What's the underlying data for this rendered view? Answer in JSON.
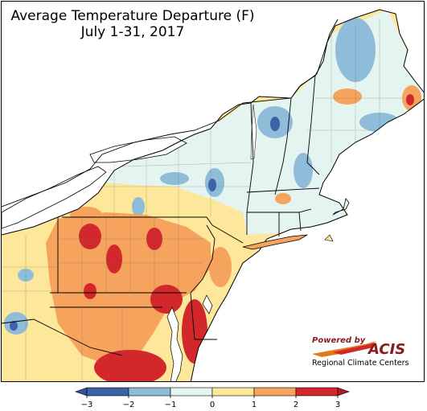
{
  "title": {
    "line1": "Average Temperature Departure (F)",
    "line2": "July 1-31, 2017"
  },
  "legend": {
    "ticks": [
      "−3",
      "−2",
      "−1",
      "0",
      "1",
      "2",
      "3"
    ],
    "colors": [
      "#3a63a8",
      "#8fbcd8",
      "#e4f4f0",
      "#fce79a",
      "#f5a35d",
      "#d2282b"
    ],
    "arrow_left_color": "#3450a0",
    "arrow_right_color": "#b2182b"
  },
  "logo": {
    "powered_by": "Powered by",
    "acis": "ACIS",
    "rcc": "Regional Climate Centers"
  },
  "colors": {
    "water": "#ffffff",
    "neutral": "#e4f4f0",
    "warm1": "#fce79a",
    "warm2": "#f5a35d",
    "hot": "#d2282b",
    "cool1": "#8fbcd8",
    "cool2": "#3a63a8"
  }
}
